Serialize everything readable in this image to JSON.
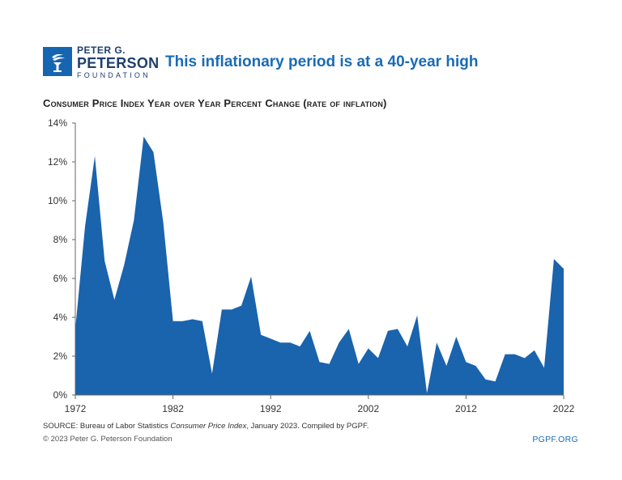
{
  "header": {
    "org_line1": "PETER G.",
    "org_line2": "PETERSON",
    "org_line3": "FOUNDATION",
    "headline": "This inflationary period is at a 40-year high"
  },
  "colors": {
    "brand": "#1665b0",
    "area": "#1a63ad",
    "headline": "#1a6bb5",
    "org_text": "#1f3f6e"
  },
  "icons": {
    "logo": "torch-icon"
  },
  "chart_data": {
    "type": "area",
    "title": "Consumer Price Index Year over Year Percent Change (rate of inflation)",
    "xlabel": "",
    "ylabel": "",
    "x": [
      1972,
      1973,
      1974,
      1975,
      1976,
      1977,
      1978,
      1979,
      1980,
      1981,
      1982,
      1983,
      1984,
      1985,
      1986,
      1987,
      1988,
      1989,
      1990,
      1991,
      1992,
      1993,
      1994,
      1995,
      1996,
      1997,
      1998,
      1999,
      2000,
      2001,
      2002,
      2003,
      2004,
      2005,
      2006,
      2007,
      2008,
      2009,
      2010,
      2011,
      2012,
      2013,
      2014,
      2015,
      2016,
      2017,
      2018,
      2019,
      2020,
      2021,
      2022
    ],
    "values": [
      3.4,
      8.7,
      12.3,
      6.9,
      4.9,
      6.7,
      9.0,
      13.3,
      12.5,
      8.9,
      3.8,
      3.8,
      3.9,
      3.8,
      1.1,
      4.4,
      4.4,
      4.6,
      6.1,
      3.1,
      2.9,
      2.7,
      2.7,
      2.5,
      3.3,
      1.7,
      1.6,
      2.7,
      3.4,
      1.6,
      2.4,
      1.9,
      3.3,
      3.4,
      2.5,
      4.1,
      0.1,
      2.7,
      1.5,
      3.0,
      1.7,
      1.5,
      0.8,
      0.7,
      2.1,
      2.1,
      1.9,
      2.3,
      1.4,
      7.0,
      6.5
    ],
    "ylim": [
      0,
      14
    ],
    "yticks": [
      0,
      2,
      4,
      6,
      8,
      10,
      12,
      14
    ],
    "ytick_labels": [
      "0%",
      "2%",
      "4%",
      "6%",
      "8%",
      "10%",
      "12%",
      "14%"
    ],
    "xticks": [
      1972,
      1982,
      1992,
      2002,
      2012,
      2022
    ],
    "xtick_labels": [
      "1972",
      "1982",
      "1992",
      "2002",
      "2012",
      "2022"
    ],
    "grid": false,
    "legend": "none"
  },
  "footer": {
    "source_prefix": "SOURCE: Bureau of Labor Statistics ",
    "source_italic": "Consumer Price Index",
    "source_suffix": ", January 2023. Compiled by PGPF.",
    "copyright": "© 2023 Peter G. Peterson Foundation",
    "url": "PGPF.ORG"
  }
}
